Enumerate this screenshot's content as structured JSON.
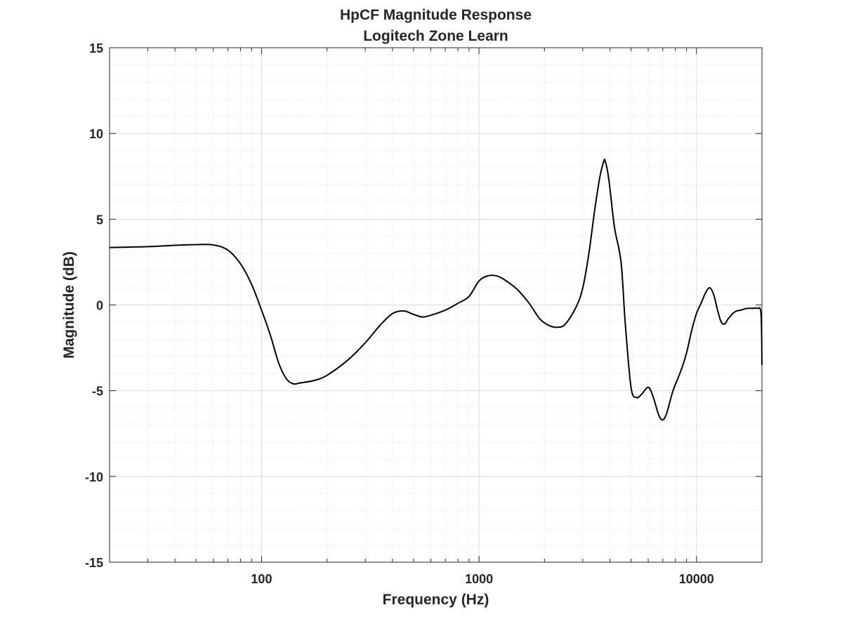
{
  "chart_data": {
    "type": "line",
    "title": "HpCF Magnitude Response",
    "subtitle": "Logitech Zone Learn",
    "xlabel": "Frequency (Hz)",
    "ylabel": "Magnitude (dB)",
    "xscale": "log",
    "xlim": [
      20,
      20000
    ],
    "ylim": [
      -15,
      15
    ],
    "grid": true,
    "minor_grid": true,
    "x_ticks": [
      100,
      1000,
      10000
    ],
    "x_tick_labels": [
      "100",
      "1000",
      "10000"
    ],
    "y_ticks": [
      15,
      10,
      5,
      0,
      -5,
      -10,
      -15
    ],
    "y_tick_labels": [
      "15",
      "10",
      "5",
      "0",
      "-5",
      "-10",
      "-15"
    ],
    "series": [
      {
        "color": "#000000",
        "x": [
          20,
          30,
          40,
          50,
          60,
          70,
          80,
          90,
          100,
          110,
          120,
          130,
          140,
          150,
          175,
          200,
          250,
          300,
          350,
          400,
          450,
          500,
          550,
          600,
          700,
          800,
          900,
          1000,
          1100,
          1200,
          1300,
          1500,
          1700,
          1900,
          2100,
          2300,
          2500,
          2800,
          3000,
          3200,
          3400,
          3600,
          3750,
          3800,
          3900,
          4000,
          4200,
          4500,
          4700,
          5000,
          5300,
          5600,
          6000,
          6300,
          6700,
          7000,
          7300,
          7800,
          8500,
          9000,
          9500,
          10000,
          10500,
          11000,
          11500,
          12000,
          12500,
          13000,
          13500,
          14000,
          15000,
          16000,
          17000,
          18000,
          19000,
          19800,
          20000
        ],
        "y": [
          3.35,
          3.4,
          3.48,
          3.52,
          3.5,
          3.2,
          2.4,
          1.2,
          -0.3,
          -1.8,
          -3.4,
          -4.3,
          -4.6,
          -4.55,
          -4.4,
          -4.1,
          -3.2,
          -2.2,
          -1.2,
          -0.5,
          -0.35,
          -0.55,
          -0.7,
          -0.6,
          -0.3,
          0.1,
          0.5,
          1.4,
          1.7,
          1.7,
          1.5,
          0.9,
          0.1,
          -0.8,
          -1.2,
          -1.3,
          -1.1,
          -0.1,
          1.0,
          3.0,
          5.5,
          7.5,
          8.4,
          8.4,
          7.8,
          6.8,
          4.5,
          2.5,
          -1.0,
          -4.8,
          -5.4,
          -5.2,
          -4.8,
          -5.3,
          -6.4,
          -6.7,
          -6.3,
          -5.0,
          -3.8,
          -2.8,
          -1.5,
          -0.5,
          0.1,
          0.7,
          1.0,
          0.6,
          -0.3,
          -1.0,
          -1.1,
          -0.8,
          -0.4,
          -0.3,
          -0.2,
          -0.2,
          -0.2,
          -0.5,
          -3.5
        ]
      }
    ]
  }
}
